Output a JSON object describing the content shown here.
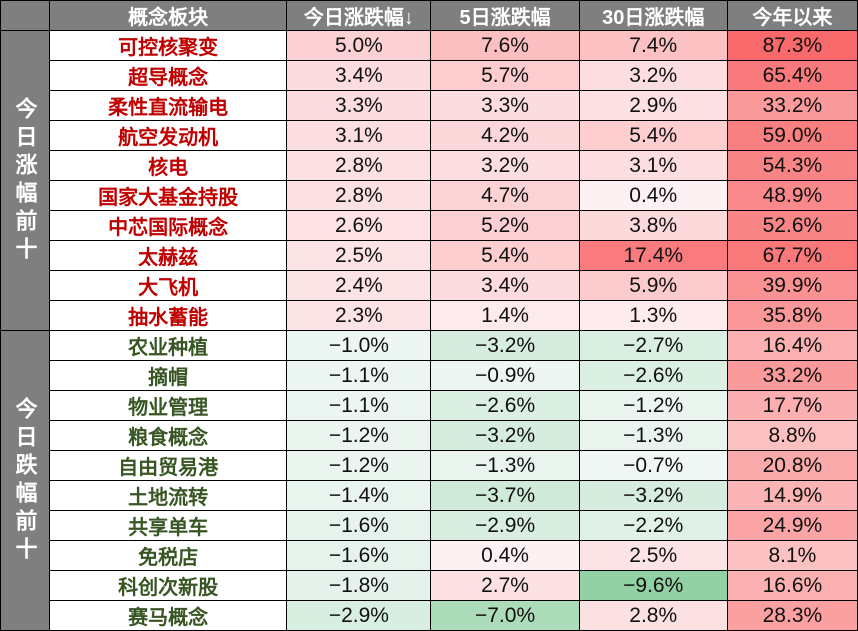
{
  "chart_data": {
    "type": "table",
    "columns": [
      "概念板块",
      "今日涨跌幅↓",
      "5日涨跌幅",
      "30日涨跌幅",
      "今年以来"
    ],
    "groups": [
      {
        "label": "今日涨幅前十",
        "kind": "up",
        "rows": [
          {
            "name": "可控核聚变",
            "values": [
              5.0,
              7.6,
              7.4,
              87.3
            ]
          },
          {
            "name": "超导概念",
            "values": [
              3.4,
              5.7,
              3.2,
              65.4
            ]
          },
          {
            "name": "柔性直流输电",
            "values": [
              3.3,
              3.3,
              2.9,
              33.2
            ]
          },
          {
            "name": "航空发动机",
            "values": [
              3.1,
              4.2,
              5.4,
              59.0
            ]
          },
          {
            "name": "核电",
            "values": [
              2.8,
              3.2,
              3.1,
              54.3
            ]
          },
          {
            "name": "国家大基金持股",
            "values": [
              2.8,
              4.7,
              0.4,
              48.9
            ]
          },
          {
            "name": "中芯国际概念",
            "values": [
              2.6,
              5.2,
              3.8,
              52.6
            ]
          },
          {
            "name": "太赫兹",
            "values": [
              2.5,
              5.4,
              17.4,
              67.7
            ]
          },
          {
            "name": "大飞机",
            "values": [
              2.4,
              3.4,
              5.9,
              39.9
            ]
          },
          {
            "name": "抽水蓄能",
            "values": [
              2.3,
              1.4,
              1.3,
              35.8
            ]
          }
        ]
      },
      {
        "label": "今日跌幅前十",
        "kind": "down",
        "rows": [
          {
            "name": "农业种植",
            "values": [
              -1.0,
              -3.2,
              -2.7,
              16.4
            ]
          },
          {
            "name": "摘帽",
            "values": [
              -1.1,
              -0.9,
              -2.6,
              33.2
            ]
          },
          {
            "name": "物业管理",
            "values": [
              -1.1,
              -2.6,
              -1.2,
              17.7
            ]
          },
          {
            "name": "粮食概念",
            "values": [
              -1.2,
              -3.2,
              -1.3,
              8.8
            ]
          },
          {
            "name": "自由贸易港",
            "values": [
              -1.2,
              -1.3,
              -0.7,
              20.8
            ]
          },
          {
            "name": "土地流转",
            "values": [
              -1.4,
              -3.7,
              -3.2,
              14.9
            ]
          },
          {
            "name": "共享单车",
            "values": [
              -1.6,
              -2.9,
              -2.2,
              24.9
            ]
          },
          {
            "name": "免税店",
            "values": [
              -1.6,
              0.4,
              2.5,
              8.1
            ]
          },
          {
            "name": "科创次新股",
            "values": [
              -1.8,
              2.7,
              -9.6,
              16.6
            ]
          },
          {
            "name": "赛马概念",
            "values": [
              -2.9,
              -7.0,
              2.8,
              28.3
            ]
          }
        ]
      }
    ],
    "unit": "%",
    "colors": {
      "positive": "#F8696B",
      "negative": "#63BE7B",
      "neutral": "#FFFFFF",
      "header": "#7F7F7F",
      "up_text": "#C00000",
      "down_text": "#375623"
    }
  }
}
